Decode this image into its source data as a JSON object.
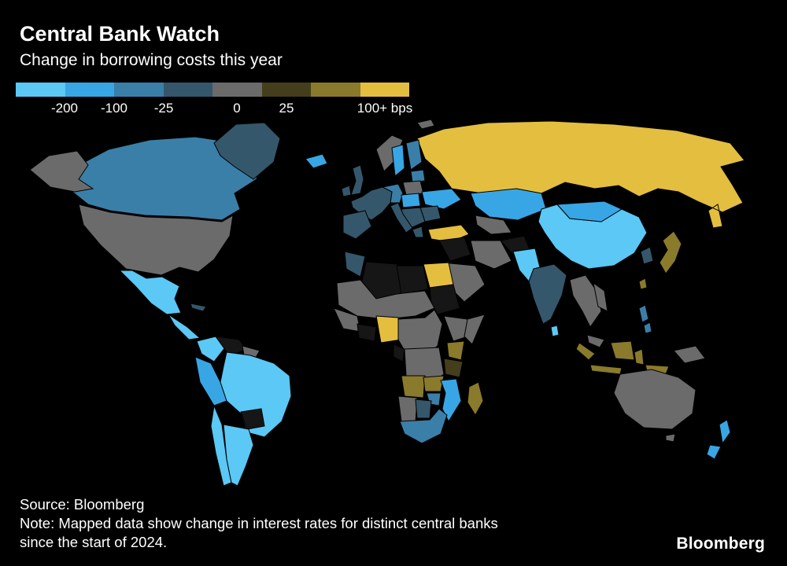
{
  "footer": {
    "source": "Source: Bloomberg",
    "note_line1": "Note: Mapped data show change in interest rates for distinct central banks",
    "note_line2": "since the start of 2024.",
    "brand": "Bloomberg"
  },
  "chart_data": {
    "type": "heatmap",
    "subtype": "choropleth_world_map",
    "title": "Central Bank Watch",
    "subtitle": "Change in borrowing costs this year",
    "unit": "change in central bank policy rate since start of 2024, basis points",
    "legend": {
      "labels": [
        "-200",
        "-100",
        "-25",
        "0",
        "25",
        "100+ bps"
      ],
      "palette": [
        "#5BC8F5",
        "#38A6E4",
        "#3A7FA8",
        "#35576B",
        "#6B6B6B",
        "#443E1C",
        "#8A7A2B",
        "#E4BE3F"
      ],
      "nodata": "#161616",
      "position": "top-left",
      "bucket_meaning": [
        "cut more than 200 bps",
        "cut 200 to 100 bps",
        "cut 100 to 25 bps",
        "cut 25 to 0 bps",
        "no change",
        "hike 0 to 25 bps",
        "hike 25 to 100 bps",
        "hike 100+ bps"
      ]
    },
    "regions": {
      "russia": 7,
      "svalbard": 4,
      "canada": 2,
      "alaska": 4,
      "greenland": 3,
      "usa": 4,
      "mexico": 0,
      "central_america": 0,
      "cuba": 3,
      "colombia": 0,
      "venezuela": -1,
      "guyanas": 4,
      "peru": 1,
      "brazil": 0,
      "bolivia": -1,
      "chile": 0,
      "argentina": 0,
      "iceland": 1,
      "ireland": 3,
      "uk": 3,
      "norway": 4,
      "sweden": 1,
      "finland": 2,
      "baltics": 2,
      "poland": 4,
      "germany_central": 2,
      "europe_west": 3,
      "czech_hungary": 1,
      "ukraine": 1,
      "romania_bulgaria": 3,
      "balkans": 3,
      "italy": 3,
      "iberia": 3,
      "greece": 3,
      "turkey": 7,
      "kazakhstan": 1,
      "uzbekistan": 4,
      "mongolia": 1,
      "china": 0,
      "korea": 3,
      "japan": 6,
      "taiwan": 6,
      "iran": 4,
      "iraq_syria": -1,
      "afghanistan": -1,
      "pakistan": 0,
      "india": 3,
      "saudi": 4,
      "sri_lanka": 0,
      "morocco": 3,
      "algeria": -1,
      "libya": -1,
      "egypt": 7,
      "sudan": -1,
      "west_africa": 4,
      "senegal_guinea": 4,
      "ghana_ivory": -1,
      "nigeria": 7,
      "cameroon_caf": 4,
      "gabon_congo": -1,
      "drc": 4,
      "ethiopia": 4,
      "somalia": 4,
      "kenya": 6,
      "tanzania": 5,
      "angola": 6,
      "zambia": 6,
      "zimbabwe": 2,
      "mozambique": 1,
      "namibia": 4,
      "botswana": 3,
      "south_africa": 2,
      "madagascar": 6,
      "myanmar_thailand": 4,
      "vietnam": 4,
      "malaysia": 4,
      "borneo": 6,
      "indonesia": 6,
      "philippines": 2,
      "new_guinea": 4,
      "australia": 4,
      "new_zealand": 1
    }
  }
}
